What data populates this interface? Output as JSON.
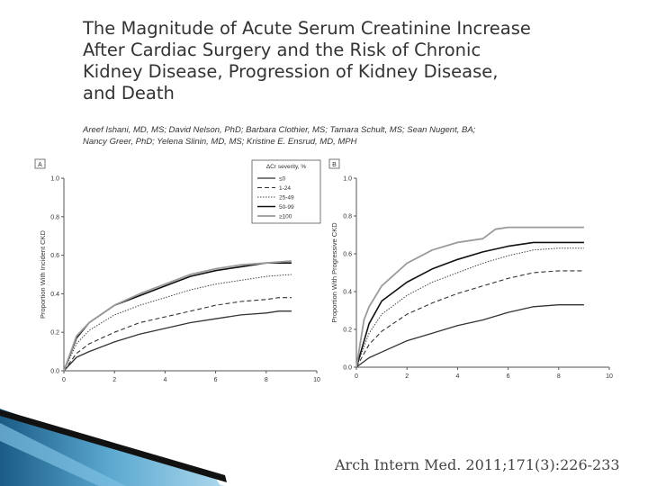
{
  "title_lines": [
    "The Magnitude of Acute Serum Creatinine Increase",
    "After Cardiac Surgery and the Risk of Chronic",
    "Kidney Disease, Progression of Kidney Disease,",
    "and Death"
  ],
  "author_lines": [
    "Areef Ishani, MD, MS; David Nelson, PhD; Barbara Clothier, MS; Tamara Schult, MS; Sean Nugent, BA;",
    "Nancy Greer, PhD; Yelena Slinin, MD, MS; Kristine E. Ensrud, MD, MPH"
  ],
  "citation": "Arch Intern Med. 2011;171(3):226-233",
  "legend": {
    "title": "ΔCr severity, %",
    "entries": [
      "≤0",
      "1-24",
      "25-49",
      "50-99",
      "≥100"
    ]
  },
  "chart_data": [
    {
      "type": "line",
      "panel_label": "A",
      "ylabel": "Proportion With Incident CKD",
      "xlabel": "",
      "xlim": [
        0,
        10
      ],
      "ylim": [
        0,
        1.0
      ],
      "xticks": [
        "0",
        "2",
        "4",
        "6",
        "8",
        "10"
      ],
      "yticks": [
        "0.0",
        "0.2",
        "0.4",
        "0.6",
        "0.8",
        "1.0"
      ],
      "legend_position": "top-right",
      "series": [
        {
          "name": "≤0",
          "x": [
            0,
            0.5,
            1,
            2,
            3,
            4,
            5,
            6,
            7,
            8,
            8.5,
            9
          ],
          "values": [
            0,
            0.07,
            0.1,
            0.15,
            0.19,
            0.22,
            0.25,
            0.27,
            0.29,
            0.3,
            0.31,
            0.31
          ]
        },
        {
          "name": "1-24",
          "x": [
            0,
            0.5,
            1,
            2,
            3,
            4,
            5,
            6,
            7,
            8,
            8.5,
            9
          ],
          "values": [
            0,
            0.09,
            0.14,
            0.2,
            0.25,
            0.28,
            0.31,
            0.34,
            0.36,
            0.37,
            0.38,
            0.38
          ]
        },
        {
          "name": "25-49",
          "x": [
            0,
            0.5,
            1,
            2,
            3,
            4,
            5,
            6,
            7,
            8,
            9
          ],
          "values": [
            0,
            0.14,
            0.21,
            0.29,
            0.34,
            0.38,
            0.42,
            0.45,
            0.47,
            0.49,
            0.5
          ]
        },
        {
          "name": "50-99",
          "x": [
            0,
            0.5,
            1,
            2,
            3,
            4,
            5,
            6,
            7,
            8,
            9
          ],
          "values": [
            0,
            0.17,
            0.25,
            0.34,
            0.39,
            0.44,
            0.49,
            0.52,
            0.54,
            0.56,
            0.56
          ]
        },
        {
          "name": "≥100",
          "x": [
            0,
            0.5,
            1,
            2,
            3,
            4,
            5,
            6,
            7,
            8,
            9
          ],
          "values": [
            0,
            0.18,
            0.25,
            0.34,
            0.4,
            0.45,
            0.5,
            0.53,
            0.55,
            0.56,
            0.57
          ]
        }
      ]
    },
    {
      "type": "line",
      "panel_label": "B",
      "ylabel": "Proportion With Progressive CKD",
      "xlabel": "",
      "xlim": [
        0,
        10
      ],
      "ylim": [
        0,
        1.0
      ],
      "xticks": [
        "0",
        "2",
        "4",
        "6",
        "8",
        "10"
      ],
      "yticks": [
        "0.0",
        "0.2",
        "0.4",
        "0.6",
        "0.8",
        "1.0"
      ],
      "series": [
        {
          "name": "≤0",
          "x": [
            0,
            0.5,
            1,
            2,
            3,
            4,
            5,
            6,
            7,
            8,
            9
          ],
          "values": [
            0,
            0.05,
            0.08,
            0.14,
            0.18,
            0.22,
            0.25,
            0.29,
            0.32,
            0.33,
            0.33
          ]
        },
        {
          "name": "1-24",
          "x": [
            0,
            0.5,
            1,
            2,
            3,
            4,
            5,
            6,
            7,
            8,
            9
          ],
          "values": [
            0,
            0.12,
            0.19,
            0.28,
            0.34,
            0.39,
            0.43,
            0.47,
            0.5,
            0.51,
            0.51
          ]
        },
        {
          "name": "25-49",
          "x": [
            0,
            0.5,
            1,
            2,
            3,
            4,
            5,
            6,
            7,
            8,
            9
          ],
          "values": [
            0,
            0.18,
            0.28,
            0.38,
            0.45,
            0.5,
            0.55,
            0.59,
            0.62,
            0.63,
            0.63
          ]
        },
        {
          "name": "50-99",
          "x": [
            0,
            0.5,
            1,
            2,
            3,
            4,
            5,
            6,
            7,
            8,
            9
          ],
          "values": [
            0,
            0.23,
            0.35,
            0.45,
            0.52,
            0.57,
            0.61,
            0.64,
            0.66,
            0.66,
            0.66
          ]
        },
        {
          "name": "≥100",
          "x": [
            0,
            0.3,
            0.5,
            1,
            2,
            3,
            4,
            5,
            5.5,
            6,
            7,
            8,
            9
          ],
          "values": [
            0,
            0.25,
            0.32,
            0.43,
            0.55,
            0.62,
            0.66,
            0.68,
            0.73,
            0.74,
            0.74,
            0.74,
            0.74
          ]
        }
      ]
    }
  ]
}
